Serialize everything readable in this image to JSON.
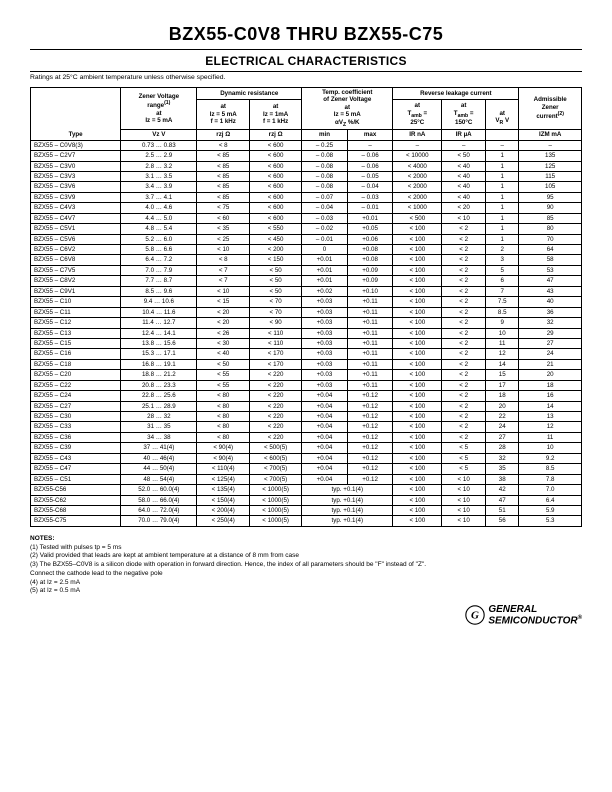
{
  "header": {
    "title": "BZX55-C0V8 THRU BZX55-C75",
    "subtitle": "ELECTRICAL CHARACTERISTICS",
    "ratings_note": "Ratings at 25°C ambient temperature unless otherwise specified."
  },
  "table": {
    "group_headers": {
      "zener_voltage": "Zener Voltage range(1) at Iz = 5 mA",
      "dynamic_res": "Dynamic resistance",
      "temp_coef": "Temp. coefficient of Zener Voltage at Iz = 5 mA αVZ %/K",
      "reverse_leak": "Reverse leakage current",
      "admissible": "Admissible Zener current(2)"
    },
    "sub_headers": {
      "rz5": "at Iz = 5 mA f = 1 kHz",
      "rz1": "at Iz = 1mA f = 1 kHz",
      "tamb25": "at Tamb = 25°C",
      "tamb150": "at Tamb = 150°C",
      "vr": "at VR V"
    },
    "col_headers": {
      "type": "Type",
      "vz": "Vz V",
      "rzj5": "rzj Ω",
      "rzj1": "rzj Ω",
      "min": "min",
      "max": "max",
      "ir_na": "IR nA",
      "ir_ua": "IR µA",
      "izm": "IZM mA"
    },
    "rows": [
      {
        "type": "BZX55 – C0V8(3)",
        "vz": "0.73 … 0.83",
        "r5": "< 8",
        "r1": "< 600",
        "min": "– 0.25",
        "max": "–",
        "irna": "–",
        "irua": "–",
        "vr": "–",
        "izm": "–"
      },
      {
        "type": "BZX55 – C2V7",
        "vz": "2.5 … 2.9",
        "r5": "< 85",
        "r1": "< 600",
        "min": "– 0.08",
        "max": "– 0.06",
        "irna": "< 10000",
        "irua": "<  50",
        "vr": "1",
        "izm": "135"
      },
      {
        "type": "BZX55 – C3V0",
        "vz": "2.8 … 3.2",
        "r5": "< 85",
        "r1": "< 600",
        "min": "– 0.08",
        "max": "– 0.06",
        "irna": "< 4000",
        "irua": "< 40",
        "vr": "1",
        "izm": "125"
      },
      {
        "type": "BZX55 – C3V3",
        "vz": "3.1 … 3.5",
        "r5": "< 85",
        "r1": "< 600",
        "min": "– 0.08",
        "max": "– 0.05",
        "irna": "< 2000",
        "irua": "< 40",
        "vr": "1",
        "izm": "115"
      },
      {
        "type": "BZX55 – C3V6",
        "vz": "3.4 … 3.9",
        "r5": "< 85",
        "r1": "< 600",
        "min": "– 0.08",
        "max": "– 0.04",
        "irna": "< 2000",
        "irua": "< 40",
        "vr": "1",
        "izm": "105"
      },
      {
        "type": "BZX55 – C3V9",
        "vz": "3.7 … 4.1",
        "r5": "< 85",
        "r1": "< 600",
        "min": "– 0.07",
        "max": "– 0.03",
        "irna": "< 2000",
        "irua": "< 40",
        "vr": "1",
        "izm": "95"
      },
      {
        "type": "BZX55 – C4V3",
        "vz": "4.0 … 4.6",
        "r5": "< 75",
        "r1": "< 600",
        "min": "– 0.04",
        "max": "– 0.01",
        "irna": "< 1000",
        "irua": "< 20",
        "vr": "1",
        "izm": "90"
      },
      {
        "type": "BZX55 – C4V7",
        "vz": "4.4 … 5.0",
        "r5": "< 60",
        "r1": "< 600",
        "min": "– 0.03",
        "max": "+0.01",
        "irna": "< 500",
        "irua": "< 10",
        "vr": "1",
        "izm": "85"
      },
      {
        "type": "BZX55 – C5V1",
        "vz": "4.8 … 5.4",
        "r5": "< 35",
        "r1": "< 550",
        "min": "– 0.02",
        "max": "+0.05",
        "irna": "< 100",
        "irua": "< 2",
        "vr": "1",
        "izm": "80"
      },
      {
        "type": "BZX55 – C5V6",
        "vz": "5.2 … 6.0",
        "r5": "< 25",
        "r1": "< 450",
        "min": "– 0.01",
        "max": "+0.06",
        "irna": "< 100",
        "irua": "< 2",
        "vr": "1",
        "izm": "70"
      },
      {
        "type": "BZX55 – C6V2",
        "vz": "5.8 … 6.6",
        "r5": "< 10",
        "r1": "< 200",
        "min": "0",
        "max": "+0.08",
        "irna": "< 100",
        "irua": "< 2",
        "vr": "2",
        "izm": "64"
      },
      {
        "type": "BZX55 – C6V8",
        "vz": "6.4 … 7.2",
        "r5": "< 8",
        "r1": "< 150",
        "min": "+0.01",
        "max": "+0.08",
        "irna": "< 100",
        "irua": "< 2",
        "vr": "3",
        "izm": "58"
      },
      {
        "type": "BZX55 – C7V5",
        "vz": "7.0 … 7.9",
        "r5": "< 7",
        "r1": "< 50",
        "min": "+0.01",
        "max": "+0.09",
        "irna": "< 100",
        "irua": "< 2",
        "vr": "5",
        "izm": "53"
      },
      {
        "type": "BZX55 – C8V2",
        "vz": "7.7 … 8.7",
        "r5": "< 7",
        "r1": "< 50",
        "min": "+0.01",
        "max": "+0.09",
        "irna": "< 100",
        "irua": "< 2",
        "vr": "6",
        "izm": "47"
      },
      {
        "type": "BZX55 – C9V1",
        "vz": "8.5 … 9.6",
        "r5": "< 10",
        "r1": "< 50",
        "min": "+0.02",
        "max": "+0.10",
        "irna": "< 100",
        "irua": "< 2",
        "vr": "7",
        "izm": "43"
      },
      {
        "type": "BZX55 – C10",
        "vz": "9.4 … 10.6",
        "r5": "< 15",
        "r1": "< 70",
        "min": "+0.03",
        "max": "+0.11",
        "irna": "< 100",
        "irua": "< 2",
        "vr": "7.5",
        "izm": "40"
      },
      {
        "type": "BZX55 – C11",
        "vz": "10.4 … 11.6",
        "r5": "< 20",
        "r1": "< 70",
        "min": "+0.03",
        "max": "+0.11",
        "irna": "< 100",
        "irua": "< 2",
        "vr": "8.5",
        "izm": "36"
      },
      {
        "type": "BZX55 – C12",
        "vz": "11.4 … 12.7",
        "r5": "< 20",
        "r1": "< 90",
        "min": "+0.03",
        "max": "+0.11",
        "irna": "< 100",
        "irua": "< 2",
        "vr": "9",
        "izm": "32"
      },
      {
        "type": "BZX55 – C13",
        "vz": "12.4 … 14.1",
        "r5": "< 26",
        "r1": "< 110",
        "min": "+0.03",
        "max": "+0.11",
        "irna": "< 100",
        "irua": "< 2",
        "vr": "10",
        "izm": "29"
      },
      {
        "type": "BZX55 – C15",
        "vz": "13.8 … 15.6",
        "r5": "< 30",
        "r1": "< 110",
        "min": "+0.03",
        "max": "+0.11",
        "irna": "< 100",
        "irua": "< 2",
        "vr": "11",
        "izm": "27"
      },
      {
        "type": "BZX55 – C16",
        "vz": "15.3 … 17.1",
        "r5": "< 40",
        "r1": "< 170",
        "min": "+0.03",
        "max": "+0.11",
        "irna": "< 100",
        "irua": "< 2",
        "vr": "12",
        "izm": "24"
      },
      {
        "type": "BZX55 – C18",
        "vz": "16.8 … 19.1",
        "r5": "< 50",
        "r1": "< 170",
        "min": "+0.03",
        "max": "+0.11",
        "irna": "< 100",
        "irua": "< 2",
        "vr": "14",
        "izm": "21"
      },
      {
        "type": "BZX55 – C20",
        "vz": "18.8 … 21.2",
        "r5": "< 55",
        "r1": "< 220",
        "min": "+0.03",
        "max": "+0.11",
        "irna": "< 100",
        "irua": "< 2",
        "vr": "15",
        "izm": "20"
      },
      {
        "type": "BZX55 – C22",
        "vz": "20.8 … 23.3",
        "r5": "< 55",
        "r1": "< 220",
        "min": "+0.03",
        "max": "+0.11",
        "irna": "< 100",
        "irua": "< 2",
        "vr": "17",
        "izm": "18"
      },
      {
        "type": "BZX55 – C24",
        "vz": "22.8 … 25.6",
        "r5": "< 80",
        "r1": "< 220",
        "min": "+0.04",
        "max": "+0.12",
        "irna": "< 100",
        "irua": "< 2",
        "vr": "18",
        "izm": "16"
      },
      {
        "type": "BZX55 – C27",
        "vz": "25.1 … 28.9",
        "r5": "< 80",
        "r1": "< 220",
        "min": "+0.04",
        "max": "+0.12",
        "irna": "< 100",
        "irua": "< 2",
        "vr": "20",
        "izm": "14"
      },
      {
        "type": "BZX55 – C30",
        "vz": "28 … 32",
        "r5": "< 80",
        "r1": "< 220",
        "min": "+0.04",
        "max": "+0.12",
        "irna": "< 100",
        "irua": "< 2",
        "vr": "22",
        "izm": "13"
      },
      {
        "type": "BZX55 – C33",
        "vz": "31 … 35",
        "r5": "< 80",
        "r1": "< 220",
        "min": "+0.04",
        "max": "+0.12",
        "irna": "< 100",
        "irua": "< 2",
        "vr": "24",
        "izm": "12"
      },
      {
        "type": "BZX55 – C36",
        "vz": "34 … 38",
        "r5": "< 80",
        "r1": "< 220",
        "min": "+0.04",
        "max": "+0.12",
        "irna": "< 100",
        "irua": "< 2",
        "vr": "27",
        "izm": "11"
      },
      {
        "type": "BZX55 – C39",
        "vz": "37 … 41(4)",
        "r5": "< 90(4)",
        "r1": "< 500(5)",
        "min": "+0.04",
        "max": "+0.12",
        "irna": "< 100",
        "irua": "< 5",
        "vr": "28",
        "izm": "10"
      },
      {
        "type": "BZX55 – C43",
        "vz": "40 … 46(4)",
        "r5": "< 90(4)",
        "r1": "< 600(5)",
        "min": "+0.04",
        "max": "+0.12",
        "irna": "< 100",
        "irua": "< 5",
        "vr": "32",
        "izm": "9.2"
      },
      {
        "type": "BZX55 – C47",
        "vz": "44 … 50(4)",
        "r5": "< 110(4)",
        "r1": "< 700(5)",
        "min": "+0.04",
        "max": "+0.12",
        "irna": "< 100",
        "irua": "< 5",
        "vr": "35",
        "izm": "8.5"
      },
      {
        "type": "BZX55 – C51",
        "vz": "48 … 54(4)",
        "r5": "< 125(4)",
        "r1": "< 700(5)",
        "min": "+0.04",
        "max": "+0.12",
        "irna": "< 100",
        "irua": "< 10",
        "vr": "38",
        "izm": "7.8"
      },
      {
        "type": "BZX55-C56",
        "vz": "52.0 … 60.0(4)",
        "r5": "< 135(4)",
        "r1": "< 1000(5)",
        "min": "typ. +0.1(4)",
        "max": "",
        "irna": "< 100",
        "irua": "< 10",
        "vr": "42",
        "izm": "7.0",
        "span_min": true
      },
      {
        "type": "BZX55-C62",
        "vz": "58.0 … 66.0(4)",
        "r5": "< 150(4)",
        "r1": "< 1000(5)",
        "min": "typ. +0.1(4)",
        "max": "",
        "irna": "< 100",
        "irua": "< 10",
        "vr": "47",
        "izm": "6.4",
        "span_min": true
      },
      {
        "type": "BZX55-C68",
        "vz": "64.0 … 72.0(4)",
        "r5": "< 200(4)",
        "r1": "< 1000(5)",
        "min": "typ. +0.1(4)",
        "max": "",
        "irna": "< 100",
        "irua": "< 10",
        "vr": "51",
        "izm": "5.9",
        "span_min": true
      },
      {
        "type": "BZX55-C75",
        "vz": "70.0 … 79.0(4)",
        "r5": "< 250(4)",
        "r1": "< 1000(5)",
        "min": "typ. +0.1(4)",
        "max": "",
        "irna": "< 100",
        "irua": "< 10",
        "vr": "56",
        "izm": "5.3",
        "span_min": true
      }
    ]
  },
  "notes": {
    "head": "NOTES:",
    "items": [
      "(1) Tested with pulses tp = 5 ms",
      "(2) Valid provided that leads are kept at ambient temperature at a distance of 8 mm from case",
      "(3) The BZX55–C0V8 is a silicon diode with operation in forward direction. Hence, the index of all parameters should be \"F\" instead of \"Z\".",
      "     Connect the cathode lead to the negative pole",
      "(4) at Iz = 2.5 mA",
      "(5) at Iz = 0.5 mA"
    ]
  },
  "logo": {
    "line1": "GENERAL",
    "line2": "SEMICONDUCTOR",
    "reg": "®"
  }
}
